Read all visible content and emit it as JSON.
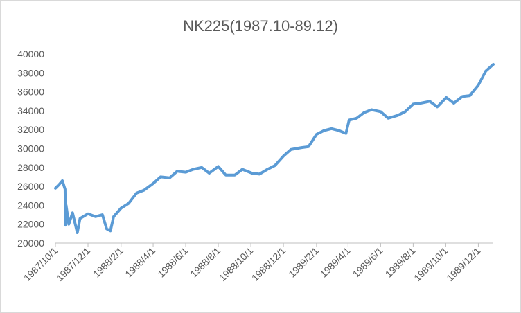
{
  "chart_data": {
    "type": "line",
    "title": "NK225(1987.10-89.12)",
    "x": [
      "1987/10/1",
      "1987/10/8",
      "1987/10/14",
      "1987/10/19",
      "1987/10/20",
      "1987/10/21",
      "1987/10/26",
      "1987/11/2",
      "1987/11/11",
      "1987/11/16",
      "1987/12/1",
      "1987/12/15",
      "1987/12/28",
      "1988/1/5",
      "1988/1/12",
      "1988/1/18",
      "1988/2/1",
      "1988/2/15",
      "1988/3/1",
      "1988/3/15",
      "1988/4/1",
      "1988/4/15",
      "1988/5/2",
      "1988/5/16",
      "1988/6/1",
      "1988/6/15",
      "1988/7/1",
      "1988/7/15",
      "1988/8/1",
      "1988/8/15",
      "1988/9/1",
      "1988/9/15",
      "1988/10/3",
      "1988/10/17",
      "1988/11/1",
      "1988/11/15",
      "1988/12/1",
      "1988/12/15",
      "1989/1/4",
      "1989/1/17",
      "1989/2/1",
      "1989/2/15",
      "1989/3/1",
      "1989/3/15",
      "1989/3/28",
      "1989/4/3",
      "1989/4/17",
      "1989/5/1",
      "1989/5/15",
      "1989/6/1",
      "1989/6/15",
      "1989/7/3",
      "1989/7/17",
      "1989/8/1",
      "1989/8/15",
      "1989/9/1",
      "1989/9/15",
      "1989/10/2",
      "1989/10/16",
      "1989/11/1",
      "1989/11/15",
      "1989/12/1",
      "1989/12/15",
      "1989/12/29"
    ],
    "series": [
      {
        "color": "#5b9bd5",
        "values": [
          25800,
          26200,
          26600,
          25700,
          21900,
          24000,
          22000,
          23200,
          21100,
          22600,
          23100,
          22800,
          23000,
          21500,
          21300,
          22800,
          23700,
          24200,
          25300,
          25600,
          26300,
          27000,
          26900,
          27600,
          27500,
          27800,
          28000,
          27400,
          28100,
          27200,
          27200,
          27800,
          27400,
          27300,
          27800,
          28200,
          29200,
          29900,
          30100,
          30200,
          31500,
          31900,
          32100,
          31900,
          31600,
          33000,
          33200,
          33800,
          34100,
          33900,
          33200,
          33500,
          33900,
          34700,
          34800,
          35000,
          34400,
          35400,
          34800,
          35500,
          35600,
          36700,
          38200,
          38900
        ]
      }
    ],
    "xlim": [
      "1987/10/1",
      "1989/12/29"
    ],
    "xticks": [
      "1987/10/1",
      "1987/12/1",
      "1988/2/1",
      "1988/4/1",
      "1988/6/1",
      "1988/8/1",
      "1988/10/1",
      "1988/12/1",
      "1989/2/1",
      "1989/4/1",
      "1989/6/1",
      "1989/8/1",
      "1989/10/1",
      "1989/12/1"
    ],
    "ylim": [
      20000,
      40000
    ],
    "yticks": [
      20000,
      22000,
      24000,
      26000,
      28000,
      30000,
      32000,
      34000,
      36000,
      38000,
      40000
    ],
    "grid": false
  }
}
